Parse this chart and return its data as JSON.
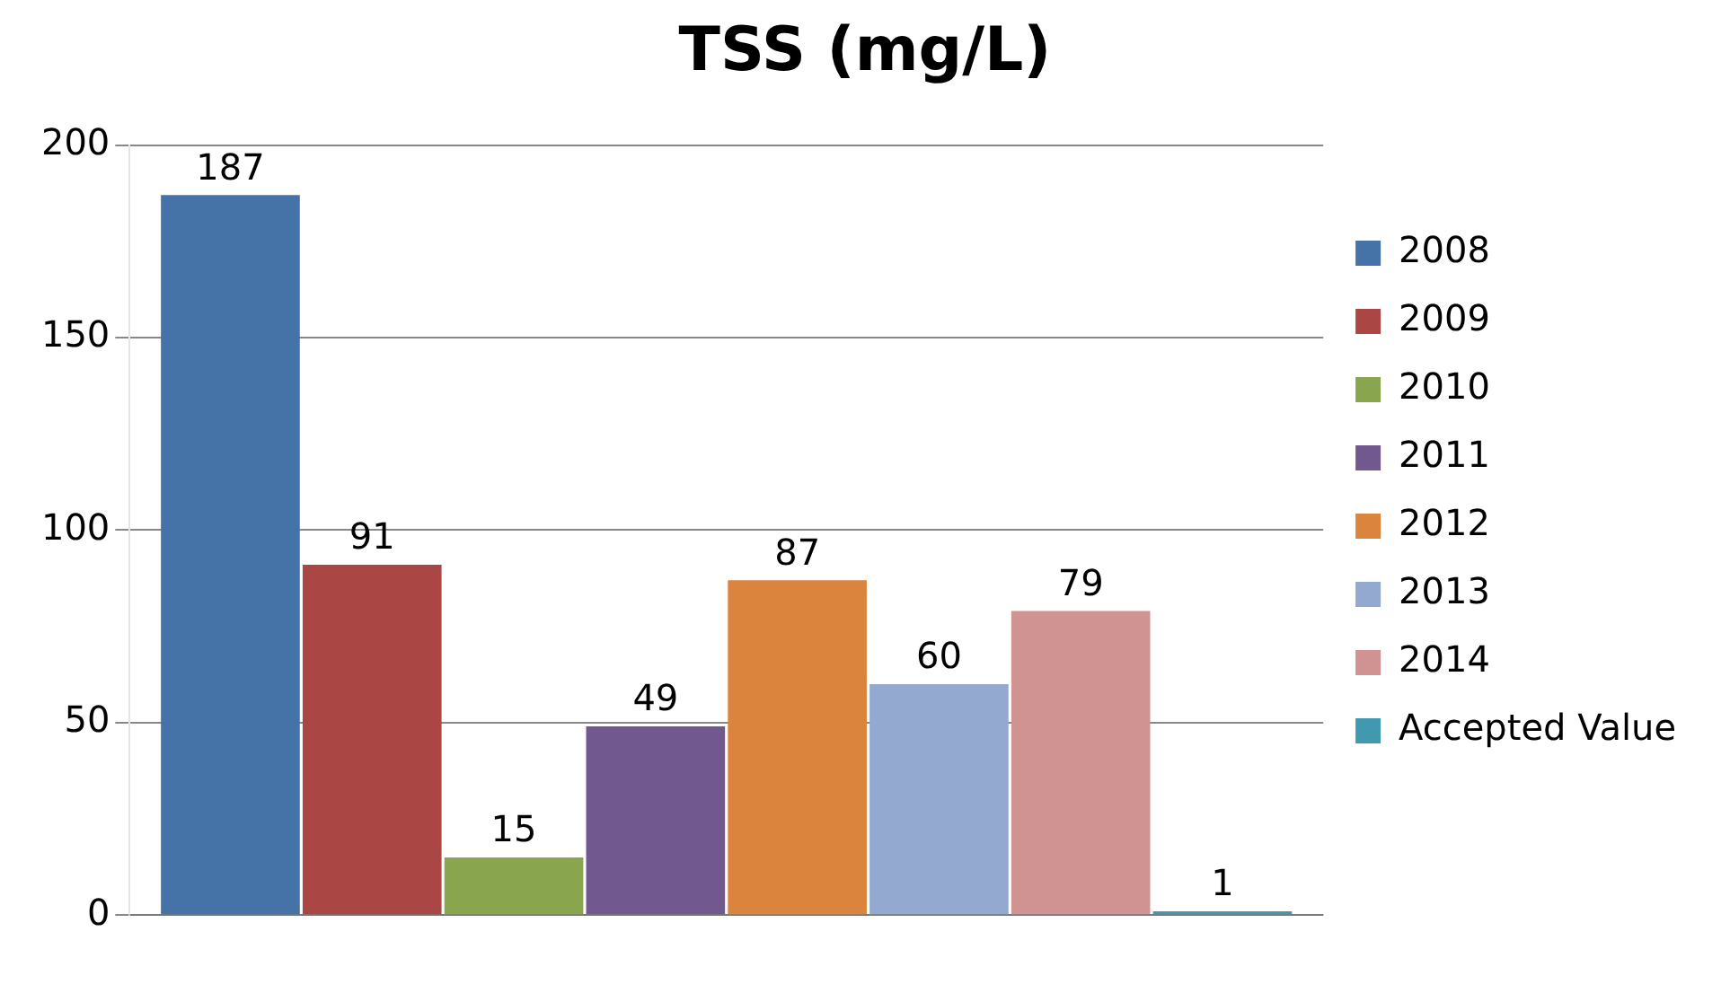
{
  "chart_data": {
    "type": "bar",
    "title": "TSS (mg/L)",
    "categories": [
      null
    ],
    "series": [
      {
        "name": "2008",
        "color": "#4572a7",
        "values": [
          187
        ]
      },
      {
        "name": "2009",
        "color": "#aa4643",
        "values": [
          91
        ]
      },
      {
        "name": "2010",
        "color": "#89a54e",
        "values": [
          15
        ]
      },
      {
        "name": "2011",
        "color": "#71588f",
        "values": [
          49
        ]
      },
      {
        "name": "2012",
        "color": "#db843d",
        "values": [
          87
        ]
      },
      {
        "name": "2013",
        "color": "#93a9cf",
        "values": [
          60
        ]
      },
      {
        "name": "2014",
        "color": "#d19392",
        "values": [
          79
        ]
      },
      {
        "name": "Accepted Value",
        "color": "#4198af",
        "values": [
          1
        ]
      }
    ],
    "ylim": [
      0,
      200
    ],
    "yticks": [
      0,
      50,
      100,
      150,
      200
    ],
    "grid": "y",
    "legend": "right",
    "data_labels": true
  }
}
